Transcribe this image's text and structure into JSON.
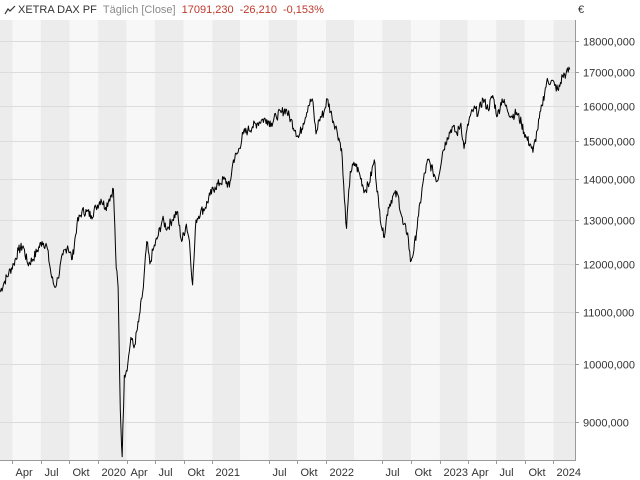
{
  "header": {
    "instrument": "XETRA DAX PF",
    "period": "Täglich [Close]",
    "last": "17091,230",
    "change": "-26,210",
    "change_pct": "-0,153%"
  },
  "currency": "€",
  "colors": {
    "line": "#000000",
    "band_light": "#f7f7f7",
    "band_dark": "#ececec",
    "grid": "#dcdcdc",
    "negative": "#c0392b"
  },
  "chart_data": {
    "type": "line",
    "title": "XETRA DAX PF",
    "y_scale": "log",
    "ylim": [
      8400,
      18700
    ],
    "y_ticks": [
      9000,
      10000,
      11000,
      12000,
      13000,
      14000,
      15000,
      16000,
      17000,
      18000
    ],
    "y_tick_labels": [
      "9000,000",
      "10000,000",
      "11000,000",
      "12000,000",
      "13000,000",
      "14000,000",
      "15000,000",
      "16000,000",
      "17000,000",
      "18000,000"
    ],
    "x_range": [
      "2019-02-20",
      "2024-03-10"
    ],
    "x_ticks": [
      {
        "date": "2019-04-01",
        "label": "Apr"
      },
      {
        "date": "2019-07-01",
        "label": "Jul"
      },
      {
        "date": "2019-10-01",
        "label": "Okt"
      },
      {
        "date": "2020-01-01",
        "label": "2020"
      },
      {
        "date": "2020-04-01",
        "label": "Apr"
      },
      {
        "date": "2020-07-01",
        "label": "Jul"
      },
      {
        "date": "2020-10-01",
        "label": "Okt"
      },
      {
        "date": "2021-01-01",
        "label": "2021"
      },
      {
        "date": "2021-07-01",
        "label": "Jul"
      },
      {
        "date": "2021-10-01",
        "label": "Okt"
      },
      {
        "date": "2022-01-01",
        "label": "2022"
      },
      {
        "date": "2022-07-01",
        "label": "Jul"
      },
      {
        "date": "2022-10-01",
        "label": "Okt"
      },
      {
        "date": "2023-01-01",
        "label": "2023"
      },
      {
        "date": "2023-04-01",
        "label": "Apr"
      },
      {
        "date": "2023-07-01",
        "label": "Jul"
      },
      {
        "date": "2023-10-01",
        "label": "Okt"
      },
      {
        "date": "2024-01-01",
        "label": "2024"
      }
    ],
    "series": [
      {
        "points": [
          [
            "2019-02-20",
            11400
          ],
          [
            "2019-03-05",
            11600
          ],
          [
            "2019-03-20",
            11800
          ],
          [
            "2019-04-05",
            12000
          ],
          [
            "2019-04-20",
            12300
          ],
          [
            "2019-05-05",
            12400
          ],
          [
            "2019-05-20",
            12000
          ],
          [
            "2019-06-05",
            12100
          ],
          [
            "2019-06-20",
            12300
          ],
          [
            "2019-07-05",
            12500
          ],
          [
            "2019-07-20",
            12400
          ],
          [
            "2019-08-05",
            11700
          ],
          [
            "2019-08-15",
            11500
          ],
          [
            "2019-08-25",
            11700
          ],
          [
            "2019-09-10",
            12200
          ],
          [
            "2019-09-25",
            12400
          ],
          [
            "2019-10-10",
            12100
          ],
          [
            "2019-10-25",
            12900
          ],
          [
            "2019-11-10",
            13200
          ],
          [
            "2019-11-25",
            13200
          ],
          [
            "2019-12-10",
            13100
          ],
          [
            "2019-12-25",
            13300
          ],
          [
            "2020-01-10",
            13500
          ],
          [
            "2020-01-25",
            13300
          ],
          [
            "2020-02-05",
            13500
          ],
          [
            "2020-02-19",
            13750
          ],
          [
            "2020-02-28",
            11900
          ],
          [
            "2020-03-05",
            11500
          ],
          [
            "2020-03-12",
            9200
          ],
          [
            "2020-03-18",
            8450
          ],
          [
            "2020-03-25",
            9800
          ],
          [
            "2020-04-05",
            10000
          ],
          [
            "2020-04-15",
            10500
          ],
          [
            "2020-04-25",
            10300
          ],
          [
            "2020-05-10",
            10800
          ],
          [
            "2020-05-25",
            11500
          ],
          [
            "2020-06-05",
            12500
          ],
          [
            "2020-06-15",
            12000
          ],
          [
            "2020-06-25",
            12300
          ],
          [
            "2020-07-10",
            12600
          ],
          [
            "2020-07-25",
            13000
          ],
          [
            "2020-08-10",
            12800
          ],
          [
            "2020-08-25",
            13000
          ],
          [
            "2020-09-10",
            13200
          ],
          [
            "2020-09-25",
            12500
          ],
          [
            "2020-10-10",
            12900
          ],
          [
            "2020-10-20",
            12500
          ],
          [
            "2020-10-30",
            11550
          ],
          [
            "2020-11-10",
            13000
          ],
          [
            "2020-11-25",
            13200
          ],
          [
            "2020-12-10",
            13300
          ],
          [
            "2020-12-25",
            13600
          ],
          [
            "2021-01-10",
            13800
          ],
          [
            "2021-01-25",
            13900
          ],
          [
            "2021-02-10",
            14000
          ],
          [
            "2021-02-25",
            13800
          ],
          [
            "2021-03-10",
            14500
          ],
          [
            "2021-03-25",
            14700
          ],
          [
            "2021-04-10",
            15200
          ],
          [
            "2021-04-25",
            15300
          ],
          [
            "2021-05-10",
            15400
          ],
          [
            "2021-05-25",
            15500
          ],
          [
            "2021-06-10",
            15600
          ],
          [
            "2021-06-25",
            15600
          ],
          [
            "2021-07-10",
            15500
          ],
          [
            "2021-07-25",
            15700
          ],
          [
            "2021-08-10",
            15800
          ],
          [
            "2021-08-25",
            15900
          ],
          [
            "2021-09-10",
            15600
          ],
          [
            "2021-09-25",
            15300
          ],
          [
            "2021-10-05",
            15100
          ],
          [
            "2021-10-20",
            15500
          ],
          [
            "2021-11-05",
            16000
          ],
          [
            "2021-11-18",
            16200
          ],
          [
            "2021-11-30",
            15200
          ],
          [
            "2021-12-10",
            15600
          ],
          [
            "2021-12-25",
            15800
          ],
          [
            "2022-01-05",
            16200
          ],
          [
            "2022-01-20",
            15700
          ],
          [
            "2022-02-05",
            15300
          ],
          [
            "2022-02-20",
            14800
          ],
          [
            "2022-03-01",
            13500
          ],
          [
            "2022-03-08",
            12800
          ],
          [
            "2022-03-20",
            14200
          ],
          [
            "2022-04-05",
            14400
          ],
          [
            "2022-04-20",
            14100
          ],
          [
            "2022-05-05",
            13700
          ],
          [
            "2022-05-20",
            13900
          ],
          [
            "2022-06-05",
            14500
          ],
          [
            "2022-06-20",
            13300
          ],
          [
            "2022-07-05",
            12600
          ],
          [
            "2022-07-20",
            13300
          ],
          [
            "2022-08-05",
            13600
          ],
          [
            "2022-08-20",
            13600
          ],
          [
            "2022-09-05",
            12900
          ],
          [
            "2022-09-20",
            12700
          ],
          [
            "2022-09-29",
            12050
          ],
          [
            "2022-10-10",
            12300
          ],
          [
            "2022-10-25",
            13100
          ],
          [
            "2022-11-10",
            14000
          ],
          [
            "2022-11-25",
            14500
          ],
          [
            "2022-12-10",
            14200
          ],
          [
            "2022-12-25",
            13950
          ],
          [
            "2023-01-10",
            14700
          ],
          [
            "2023-01-25",
            15100
          ],
          [
            "2023-02-10",
            15400
          ],
          [
            "2023-02-25",
            15200
          ],
          [
            "2023-03-10",
            15500
          ],
          [
            "2023-03-20",
            14800
          ],
          [
            "2023-04-05",
            15600
          ],
          [
            "2023-04-20",
            15900
          ],
          [
            "2023-05-05",
            15800
          ],
          [
            "2023-05-20",
            16200
          ],
          [
            "2023-06-05",
            15900
          ],
          [
            "2023-06-20",
            16300
          ],
          [
            "2023-07-05",
            15700
          ],
          [
            "2023-07-20",
            16200
          ],
          [
            "2023-08-05",
            15900
          ],
          [
            "2023-08-20",
            15700
          ],
          [
            "2023-09-05",
            15800
          ],
          [
            "2023-09-20",
            15500
          ],
          [
            "2023-10-05",
            15100
          ],
          [
            "2023-10-20",
            14900
          ],
          [
            "2023-10-27",
            14700
          ],
          [
            "2023-11-10",
            15300
          ],
          [
            "2023-11-25",
            16000
          ],
          [
            "2023-12-10",
            16700
          ],
          [
            "2023-12-25",
            16750
          ],
          [
            "2024-01-05",
            16600
          ],
          [
            "2024-01-17",
            16450
          ],
          [
            "2024-01-30",
            16900
          ],
          [
            "2024-02-10",
            16950
          ],
          [
            "2024-02-22",
            17091
          ]
        ]
      }
    ]
  }
}
